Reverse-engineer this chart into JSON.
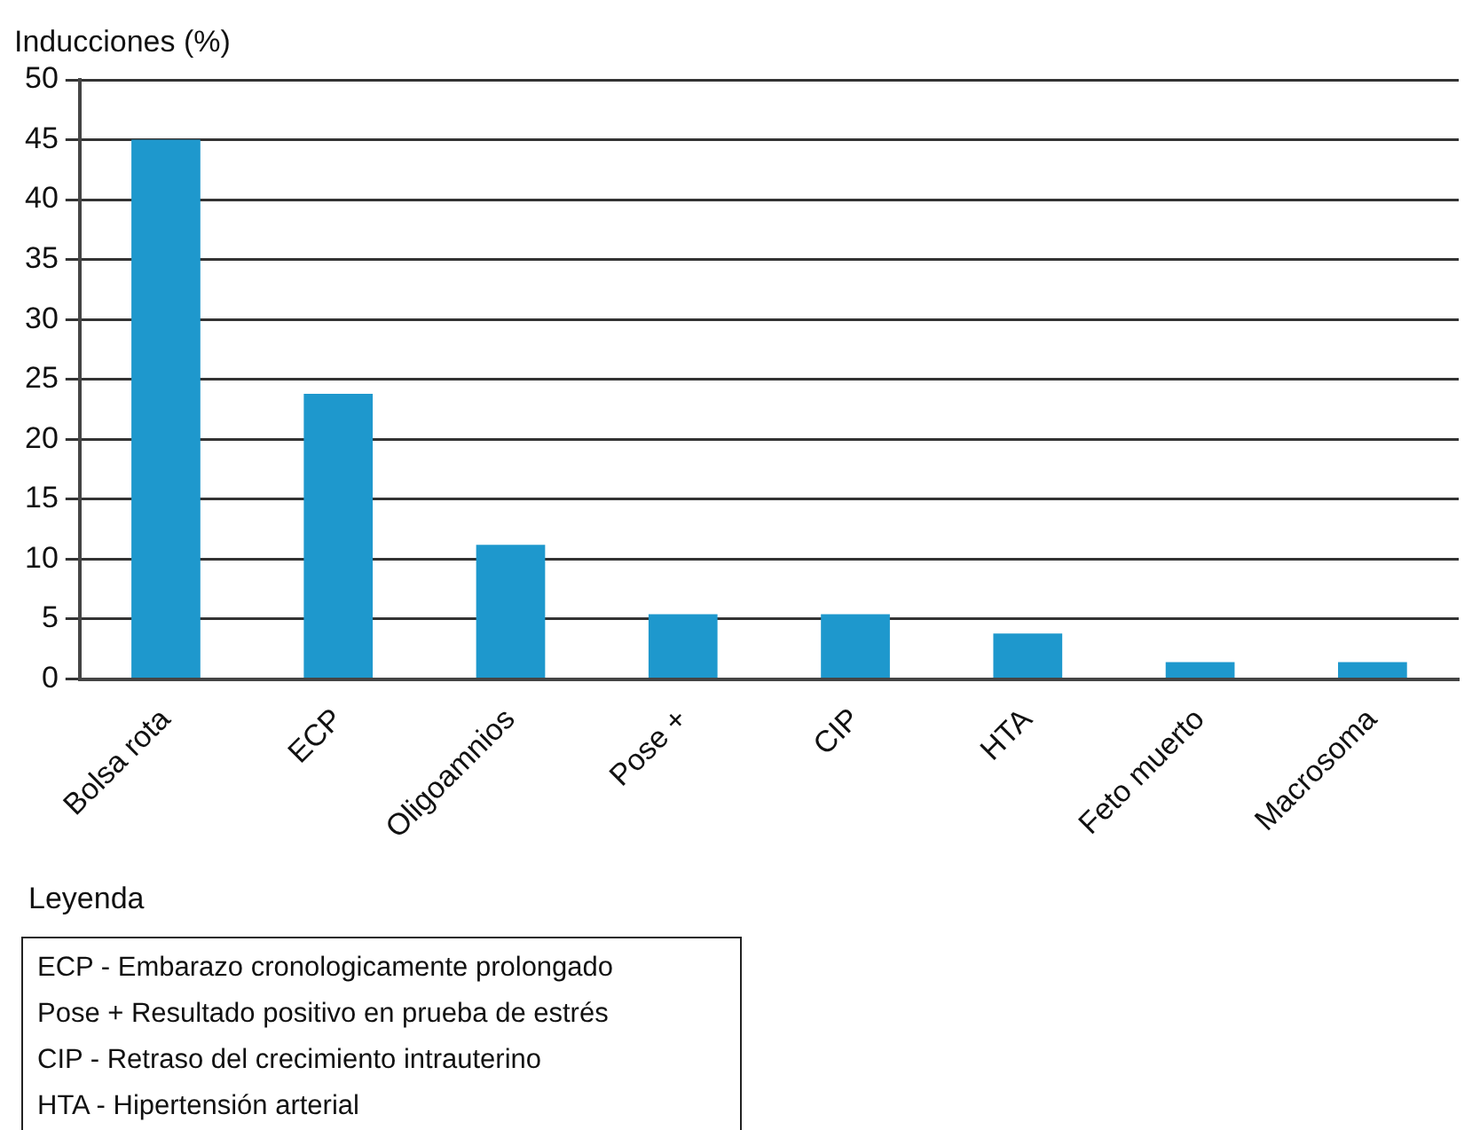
{
  "chart_data": {
    "type": "bar",
    "ylabel": "Inducciones (%)",
    "categories": [
      "Bolsa rota",
      "ECP",
      "Oligoamnios",
      "Pose +",
      "CIP",
      "HTA",
      "Feto muerto",
      "Macrosoma"
    ],
    "values": [
      45,
      23.8,
      11.2,
      5.4,
      5.4,
      3.8,
      1.4,
      1.4
    ],
    "color": "#1e98cd",
    "ylim": [
      0,
      50
    ],
    "yticks": [
      0,
      5,
      10,
      15,
      20,
      25,
      30,
      35,
      40,
      45,
      50
    ],
    "grid": "y",
    "legend": false,
    "annotations": [
      "Leyenda",
      "ECP - Embarazo cronologicamente prolongado",
      "Pose + Resultado positivo en prueba de estrés",
      "CIP - Retraso del crecimiento intrauterino",
      "HTA - Hipertensión arterial"
    ]
  }
}
